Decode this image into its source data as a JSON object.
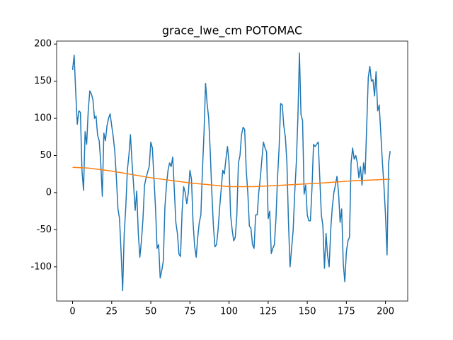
{
  "chart_data": {
    "type": "line",
    "title": "grace_lwe_cm POTOMAC",
    "xlim": [
      -10.2,
      214.2
    ],
    "xticks": [
      0,
      25,
      50,
      75,
      100,
      125,
      150,
      175,
      200
    ],
    "ylim": [
      -146,
      204
    ],
    "yticks": [
      -100,
      -50,
      0,
      50,
      100,
      150,
      200
    ],
    "series": [
      {
        "color": "#1f77b4",
        "x": [
          0,
          1,
          2,
          3,
          4,
          5,
          6,
          7,
          8,
          9,
          10,
          11,
          12,
          13,
          14,
          15,
          16,
          17,
          18,
          19,
          20,
          21,
          22,
          23,
          24,
          25,
          26,
          27,
          28,
          29,
          30,
          31,
          32,
          33,
          34,
          35,
          36,
          37,
          38,
          39,
          40,
          41,
          42,
          43,
          44,
          45,
          46,
          47,
          48,
          49,
          50,
          51,
          52,
          53,
          54,
          55,
          56,
          57,
          58,
          59,
          60,
          61,
          62,
          63,
          64,
          65,
          66,
          67,
          68,
          69,
          70,
          71,
          72,
          73,
          74,
          75,
          76,
          77,
          78,
          79,
          80,
          81,
          82,
          83,
          84,
          85,
          86,
          87,
          88,
          89,
          90,
          91,
          92,
          93,
          94,
          95,
          96,
          97,
          98,
          99,
          100,
          101,
          102,
          103,
          104,
          105,
          106,
          107,
          108,
          109,
          110,
          111,
          112,
          113,
          114,
          115,
          116,
          117,
          118,
          119,
          120,
          121,
          122,
          123,
          124,
          125,
          126,
          127,
          128,
          129,
          130,
          131,
          132,
          133,
          134,
          135,
          136,
          137,
          138,
          139,
          140,
          141,
          142,
          143,
          144,
          145,
          146,
          147,
          148,
          149,
          150,
          151,
          152,
          153,
          154,
          155,
          156,
          157,
          158,
          159,
          160,
          161,
          162,
          163,
          164,
          165,
          166,
          167,
          168,
          169,
          170,
          171,
          172,
          173,
          174,
          175,
          176,
          177,
          178,
          179,
          180,
          181,
          182,
          183,
          184,
          185,
          186,
          187,
          188,
          189,
          190,
          191,
          192,
          193,
          194,
          195,
          196,
          197,
          198,
          199,
          200,
          201,
          202,
          203
        ],
        "values": [
          165,
          185,
          135,
          92,
          110,
          108,
          30,
          3,
          82,
          65,
          110,
          137,
          133,
          125,
          100,
          103,
          77,
          70,
          40,
          -5,
          80,
          70,
          90,
          100,
          106,
          90,
          75,
          55,
          20,
          -22,
          -35,
          -80,
          -132,
          -55,
          -20,
          30,
          50,
          78,
          40,
          10,
          -24,
          2,
          -55,
          -87,
          -65,
          -35,
          10,
          20,
          28,
          35,
          68,
          60,
          20,
          -20,
          -75,
          -70,
          -115,
          -105,
          -92,
          -20,
          10,
          30,
          40,
          35,
          48,
          5,
          -40,
          -55,
          -83,
          -86,
          -25,
          8,
          0,
          -15,
          0,
          30,
          18,
          -40,
          -72,
          -87,
          -60,
          -40,
          -30,
          30,
          80,
          147,
          120,
          100,
          55,
          0,
          -45,
          -73,
          -70,
          -50,
          -20,
          5,
          30,
          25,
          45,
          62,
          40,
          -30,
          -50,
          -65,
          -60,
          -30,
          40,
          50,
          78,
          88,
          85,
          30,
          0,
          -45,
          -48,
          -70,
          -75,
          -30,
          -30,
          0,
          20,
          45,
          68,
          60,
          55,
          -35,
          -25,
          -82,
          -75,
          -70,
          -35,
          20,
          60,
          120,
          118,
          90,
          75,
          40,
          -40,
          -100,
          -75,
          -50,
          0,
          40,
          100,
          188,
          105,
          97,
          -2,
          10,
          -30,
          -38,
          -38,
          5,
          65,
          62,
          65,
          68,
          20,
          -30,
          -45,
          -102,
          -55,
          -85,
          -100,
          -50,
          -20,
          0,
          10,
          22,
          0,
          -40,
          -22,
          -95,
          -120,
          -80,
          -65,
          -60,
          40,
          60,
          45,
          50,
          40,
          20,
          35,
          10,
          40,
          25,
          90,
          155,
          170,
          150,
          152,
          130,
          163,
          110,
          118,
          80,
          42,
          10,
          -30,
          -84,
          40,
          56
        ]
      },
      {
        "color": "#ff7f0e",
        "x": [
          0,
          10,
          25,
          50,
          75,
          100,
          115,
          135,
          160,
          180,
          203
        ],
        "values": [
          34,
          33,
          29,
          20,
          13,
          8,
          8,
          10,
          13,
          16,
          18
        ]
      }
    ]
  }
}
